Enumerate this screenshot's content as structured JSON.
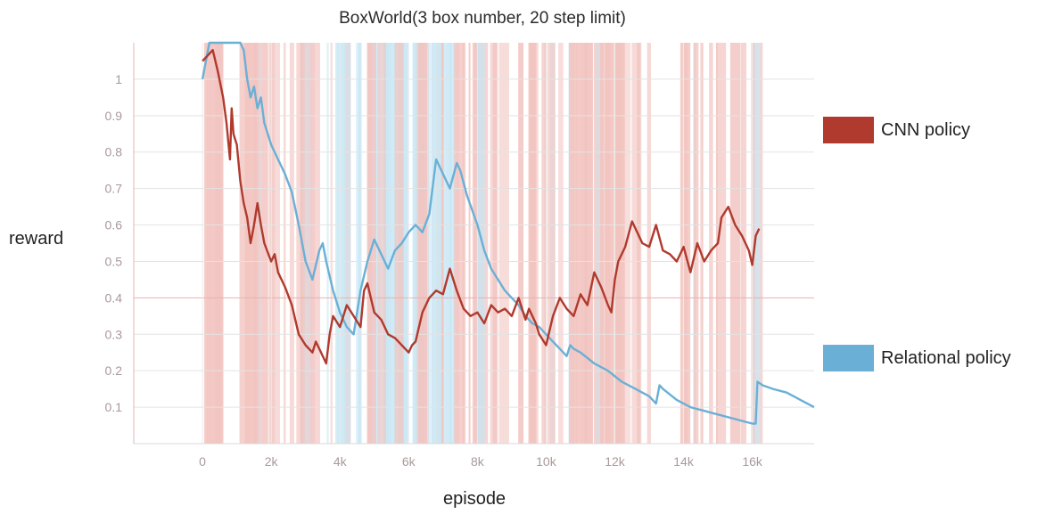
{
  "chart_data": {
    "type": "line",
    "title": "BoxWorld(3 box number, 20 step limit)",
    "xlabel": "episode",
    "ylabel": "reward",
    "xlim": [
      -2000,
      17800
    ],
    "ylim": [
      0,
      1.1
    ],
    "grid": true,
    "legend_position": "right",
    "x_ticks": [
      0,
      2000,
      4000,
      6000,
      8000,
      10000,
      12000,
      14000,
      16000
    ],
    "x_tick_labels": [
      "0",
      "2k",
      "4k",
      "6k",
      "8k",
      "10k",
      "12k",
      "14k",
      "16k"
    ],
    "y_ticks": [
      0.1,
      0.2,
      0.3,
      0.4,
      0.5,
      0.6,
      0.7,
      0.8,
      0.9,
      1
    ],
    "y_tick_labels": [
      "0.1",
      "0.2",
      "0.3",
      "0.4",
      "0.5",
      "0.6",
      "0.7",
      "0.8",
      "0.9",
      "1"
    ],
    "series": [
      {
        "name": "CNN policy",
        "color": "#b03a2e",
        "band_color": "#f2c4c0",
        "x": [
          0,
          300,
          450,
          600,
          700,
          800,
          850,
          900,
          1000,
          1100,
          1200,
          1300,
          1400,
          1500,
          1550,
          1600,
          1700,
          1800,
          2000,
          2100,
          2200,
          2400,
          2600,
          2800,
          3000,
          3200,
          3300,
          3400,
          3600,
          3700,
          3800,
          4000,
          4200,
          4400,
          4600,
          4700,
          4800,
          5000,
          5200,
          5400,
          5600,
          6000,
          6100,
          6200,
          6400,
          6600,
          6800,
          7000,
          7200,
          7400,
          7600,
          7800,
          8000,
          8200,
          8400,
          8600,
          8800,
          9000,
          9200,
          9400,
          9500,
          9700,
          9800,
          10000,
          10200,
          10400,
          10600,
          10800,
          11000,
          11200,
          11400,
          11600,
          11800,
          11900,
          12000,
          12100,
          12300,
          12500,
          12700,
          12800,
          13000,
          13200,
          13400,
          13600,
          13800,
          14000,
          14200,
          14400,
          14600,
          14800,
          15000,
          15100,
          15300,
          15500,
          15700,
          15900,
          16000,
          16100,
          16200
        ],
        "y": [
          1.05,
          1.08,
          1.02,
          0.95,
          0.88,
          0.78,
          0.92,
          0.85,
          0.82,
          0.72,
          0.66,
          0.62,
          0.55,
          0.6,
          0.63,
          0.66,
          0.6,
          0.55,
          0.5,
          0.52,
          0.47,
          0.43,
          0.38,
          0.3,
          0.27,
          0.25,
          0.28,
          0.26,
          0.22,
          0.3,
          0.35,
          0.32,
          0.38,
          0.35,
          0.32,
          0.42,
          0.44,
          0.36,
          0.34,
          0.3,
          0.29,
          0.25,
          0.27,
          0.28,
          0.36,
          0.4,
          0.42,
          0.41,
          0.48,
          0.42,
          0.37,
          0.35,
          0.36,
          0.33,
          0.38,
          0.36,
          0.37,
          0.35,
          0.4,
          0.34,
          0.37,
          0.33,
          0.3,
          0.27,
          0.35,
          0.4,
          0.37,
          0.35,
          0.41,
          0.38,
          0.47,
          0.43,
          0.38,
          0.36,
          0.45,
          0.5,
          0.54,
          0.61,
          0.57,
          0.55,
          0.54,
          0.6,
          0.53,
          0.52,
          0.5,
          0.54,
          0.47,
          0.55,
          0.5,
          0.53,
          0.55,
          0.62,
          0.65,
          0.6,
          0.57,
          0.53,
          0.49,
          0.57,
          0.59
        ]
      },
      {
        "name": "Relational policy",
        "color": "#6ab0d6",
        "band_color": "#c9e7f4",
        "x": [
          0,
          200,
          300,
          600,
          800,
          1000,
          1100,
          1200,
          1300,
          1400,
          1500,
          1600,
          1700,
          1800,
          2000,
          2200,
          2400,
          2600,
          2800,
          3000,
          3200,
          3400,
          3500,
          3600,
          3800,
          4000,
          4200,
          4400,
          4600,
          4800,
          5000,
          5200,
          5400,
          5600,
          5800,
          6000,
          6200,
          6400,
          6600,
          6800,
          7000,
          7200,
          7400,
          7500,
          7700,
          8000,
          8200,
          8400,
          8600,
          8800,
          9000,
          9200,
          9400,
          9600,
          9800,
          10000,
          10200,
          10400,
          10600,
          10700,
          10800,
          11000,
          11400,
          11800,
          12200,
          12600,
          13000,
          13200,
          13300,
          13400,
          13800,
          14200,
          14600,
          15000,
          15400,
          15800,
          16000,
          16100,
          16150,
          16300,
          16600,
          17000,
          17400,
          17800
        ],
        "y": [
          1.0,
          1.2,
          1.1,
          1.2,
          1.15,
          1.1,
          1.12,
          1.08,
          1.0,
          0.95,
          0.98,
          0.92,
          0.95,
          0.88,
          0.82,
          0.78,
          0.74,
          0.69,
          0.6,
          0.5,
          0.45,
          0.53,
          0.55,
          0.5,
          0.42,
          0.36,
          0.32,
          0.3,
          0.42,
          0.5,
          0.56,
          0.52,
          0.48,
          0.53,
          0.55,
          0.58,
          0.6,
          0.58,
          0.63,
          0.78,
          0.74,
          0.7,
          0.77,
          0.75,
          0.68,
          0.6,
          0.53,
          0.48,
          0.45,
          0.42,
          0.4,
          0.38,
          0.35,
          0.33,
          0.32,
          0.3,
          0.28,
          0.26,
          0.24,
          0.27,
          0.26,
          0.25,
          0.22,
          0.2,
          0.17,
          0.15,
          0.13,
          0.11,
          0.16,
          0.15,
          0.12,
          0.1,
          0.09,
          0.08,
          0.07,
          0.06,
          0.055,
          0.055,
          0.17,
          0.16,
          0.15,
          0.14,
          0.12,
          0.1
        ]
      }
    ]
  },
  "legend": {
    "cnn_label": "CNN policy",
    "relational_label": "Relational policy"
  }
}
